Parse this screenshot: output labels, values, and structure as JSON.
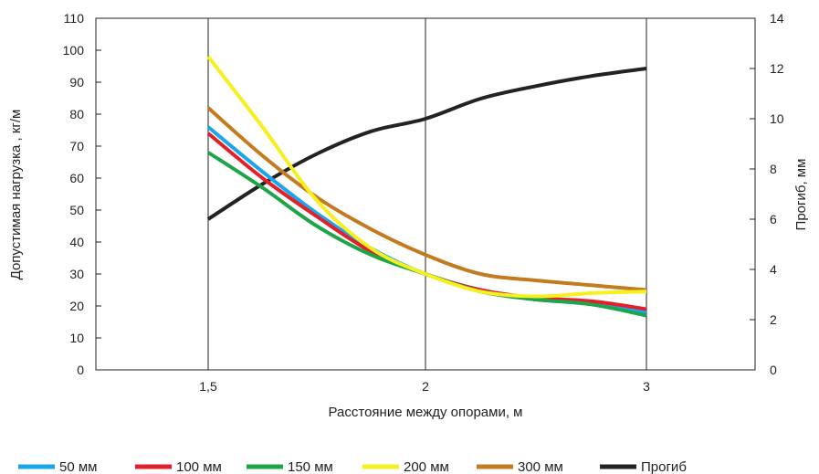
{
  "chart_data": {
    "type": "line",
    "xlabel": "Расстояние между опорами, м",
    "ylabel_left": "Допустимая нагрузка , кг/м",
    "ylabel_right": "Прогиб, мм",
    "x_ticks": [
      "1,5",
      "2",
      "3"
    ],
    "x": [
      1.5,
      1.625,
      1.75,
      1.875,
      2.0,
      2.25,
      2.5,
      2.75,
      3.0
    ],
    "ylim_left": [
      0,
      110
    ],
    "y_ticks_left": [
      0,
      10,
      20,
      30,
      40,
      50,
      60,
      70,
      80,
      90,
      100,
      110
    ],
    "ylim_right": [
      0,
      14
    ],
    "y_ticks_right": [
      0,
      2,
      4,
      6,
      8,
      10,
      12,
      14
    ],
    "grid": "vertical",
    "legend_position": "bottom",
    "series": [
      {
        "name": "50 мм",
        "axis": "left",
        "color": "#1aa6e8",
        "values": [
          76,
          62,
          49,
          38,
          30,
          25,
          22,
          21,
          18
        ]
      },
      {
        "name": "100 мм",
        "axis": "left",
        "color": "#e3202a",
        "values": [
          74,
          60,
          48,
          37,
          30,
          25,
          22.5,
          21.5,
          19
        ]
      },
      {
        "name": "150 мм",
        "axis": "left",
        "color": "#1ea44b",
        "values": [
          68,
          57,
          45,
          36,
          30,
          24.5,
          22,
          20.5,
          17
        ]
      },
      {
        "name": "200 мм",
        "axis": "left",
        "color": "#f7ef1f",
        "values": [
          98,
          76,
          53,
          38,
          30,
          24.5,
          23,
          24,
          24.5
        ]
      },
      {
        "name": "300 мм",
        "axis": "left",
        "color": "#c47a1f",
        "values": [
          82,
          67,
          54,
          44,
          36,
          30,
          28,
          26.5,
          25
        ]
      },
      {
        "name": "Прогиб",
        "axis": "right",
        "color": "#222222",
        "values": [
          6.0,
          7.4,
          8.6,
          9.5,
          10.0,
          10.8,
          11.3,
          11.7,
          12.0
        ]
      }
    ]
  }
}
